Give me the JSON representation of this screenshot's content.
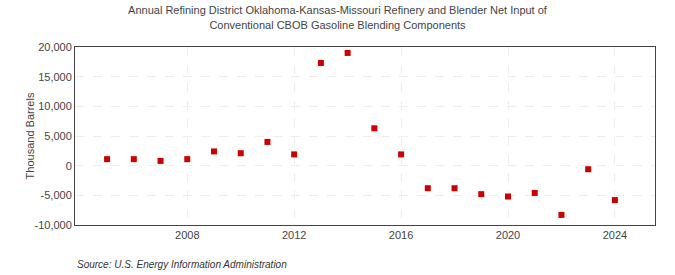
{
  "chart_data": {
    "type": "scatter",
    "title": "Annual Refining District Oklahoma-Kansas-Missouri Refinery and Blender Net Input of\nConventional CBOB Gasoline Blending Components",
    "ylabel": "Thousand Barrels",
    "annotations": [
      "Source: U.S. Energy Information Administration"
    ],
    "x": [
      2005,
      2006,
      2007,
      2008,
      2009,
      2010,
      2011,
      2012,
      2013,
      2014,
      2015,
      2016,
      2017,
      2018,
      2019,
      2020,
      2021,
      2022,
      2023,
      2024
    ],
    "values": [
      1100,
      1100,
      800,
      1100,
      2400,
      2100,
      4000,
      1900,
      17300,
      19000,
      6300,
      1900,
      -3800,
      -3800,
      -4800,
      -5200,
      -4600,
      -8300,
      -600,
      -5800
    ],
    "color": "#cc0000",
    "marker": "square",
    "xlim": [
      2003.8,
      2025.5
    ],
    "xticks": [
      2008,
      2012,
      2016,
      2020,
      2024
    ],
    "ylim": [
      -10000,
      20000
    ],
    "yticks": [
      {
        "value": -10000,
        "label": "-10,000"
      },
      {
        "value": -5000,
        "label": "-5,000"
      },
      0,
      {
        "value": 5000,
        "label": "5,000"
      },
      {
        "value": 10000,
        "label": "10,000"
      },
      {
        "value": 15000,
        "label": "15,000"
      },
      {
        "value": 20000,
        "label": "20,000"
      }
    ],
    "grid": true
  }
}
